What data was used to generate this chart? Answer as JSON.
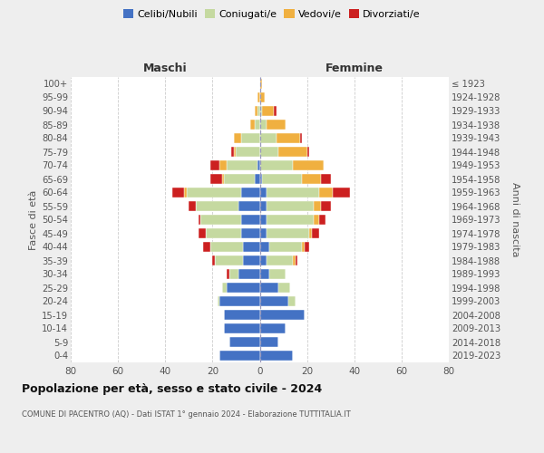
{
  "age_groups": [
    "0-4",
    "5-9",
    "10-14",
    "15-19",
    "20-24",
    "25-29",
    "30-34",
    "35-39",
    "40-44",
    "45-49",
    "50-54",
    "55-59",
    "60-64",
    "65-69",
    "70-74",
    "75-79",
    "80-84",
    "85-89",
    "90-94",
    "95-99",
    "100+"
  ],
  "birth_years": [
    "2019-2023",
    "2014-2018",
    "2009-2013",
    "2004-2008",
    "1999-2003",
    "1994-1998",
    "1989-1993",
    "1984-1988",
    "1979-1983",
    "1974-1978",
    "1969-1973",
    "1964-1968",
    "1959-1963",
    "1954-1958",
    "1949-1953",
    "1944-1948",
    "1939-1943",
    "1934-1938",
    "1929-1933",
    "1924-1928",
    "≤ 1923"
  ],
  "male": {
    "celibi": [
      17,
      13,
      15,
      15,
      17,
      14,
      9,
      7,
      7,
      8,
      8,
      9,
      8,
      2,
      1,
      0,
      0,
      0,
      0,
      0,
      0
    ],
    "coniugati": [
      0,
      0,
      0,
      0,
      1,
      2,
      4,
      12,
      14,
      15,
      17,
      18,
      23,
      13,
      13,
      10,
      8,
      2,
      1,
      0,
      0
    ],
    "vedovi": [
      0,
      0,
      0,
      0,
      0,
      0,
      0,
      0,
      0,
      0,
      0,
      0,
      1,
      1,
      3,
      1,
      3,
      2,
      1,
      1,
      0
    ],
    "divorziati": [
      0,
      0,
      0,
      0,
      0,
      0,
      1,
      1,
      3,
      3,
      1,
      3,
      5,
      5,
      4,
      1,
      0,
      0,
      0,
      0,
      0
    ]
  },
  "female": {
    "nubili": [
      14,
      8,
      11,
      19,
      12,
      8,
      4,
      3,
      4,
      3,
      3,
      3,
      3,
      1,
      0,
      0,
      0,
      0,
      0,
      0,
      0
    ],
    "coniugate": [
      0,
      0,
      0,
      0,
      3,
      5,
      7,
      11,
      14,
      18,
      20,
      20,
      22,
      17,
      14,
      8,
      7,
      3,
      1,
      0,
      0
    ],
    "vedove": [
      0,
      0,
      0,
      0,
      0,
      0,
      0,
      1,
      1,
      1,
      2,
      3,
      6,
      8,
      13,
      12,
      10,
      8,
      5,
      2,
      1
    ],
    "divorziate": [
      0,
      0,
      0,
      0,
      0,
      0,
      0,
      1,
      2,
      3,
      3,
      4,
      7,
      4,
      0,
      1,
      1,
      0,
      1,
      0,
      0
    ]
  },
  "color_celibi": "#4472c4",
  "color_coniugati": "#c5d9a0",
  "color_vedovi": "#f0b040",
  "color_divorziati": "#cc2020",
  "xlim": 80,
  "title": "Popolazione per età, sesso e stato civile - 2024",
  "subtitle": "COMUNE DI PACENTRO (AQ) - Dati ISTAT 1° gennaio 2024 - Elaborazione TUTTITALIA.IT",
  "ylabel_left": "Fasce di età",
  "ylabel_right": "Anni di nascita",
  "xlabel_maschi": "Maschi",
  "xlabel_femmine": "Femmine",
  "bg_color": "#eeeeee",
  "plot_bg_color": "#ffffff"
}
